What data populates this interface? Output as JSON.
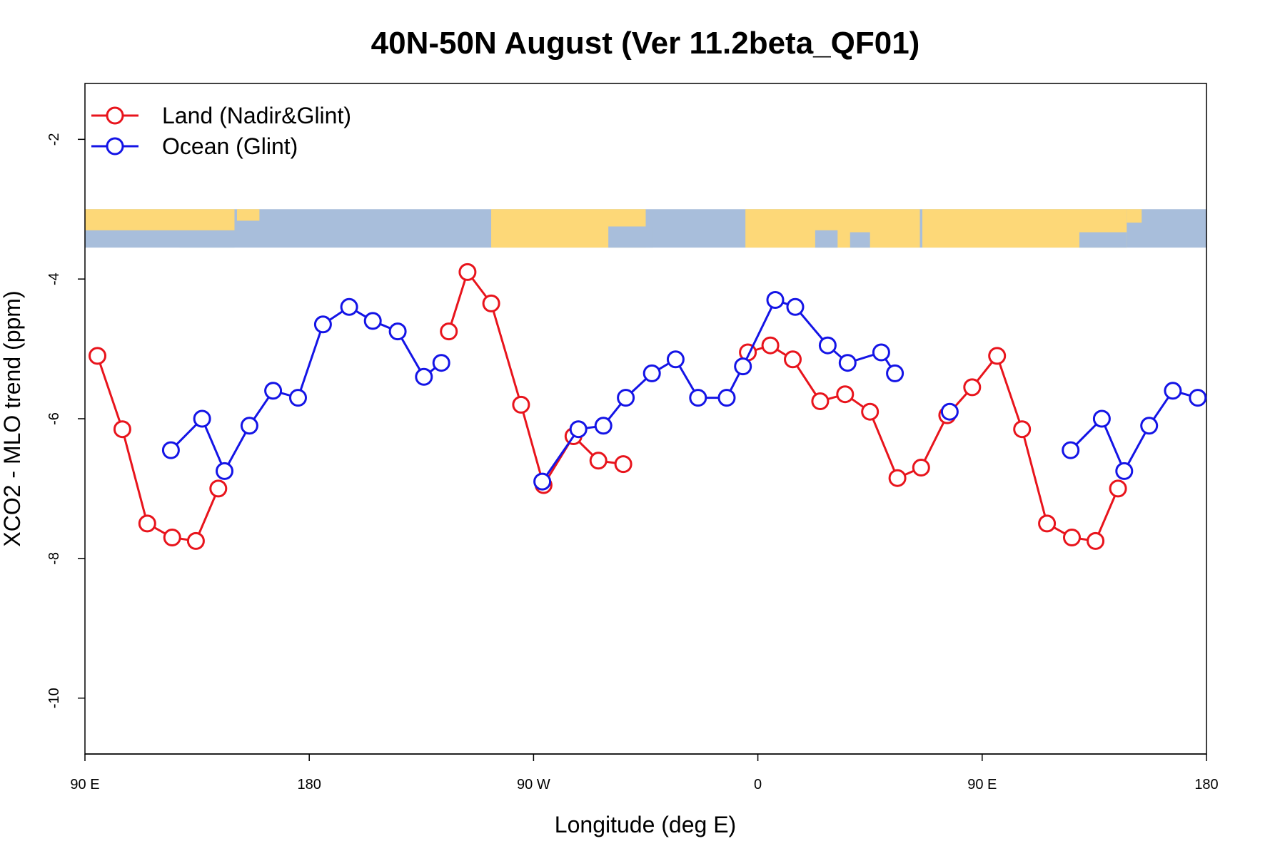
{
  "chart_data": {
    "type": "line",
    "title": "40N-50N August (Ver 11.2beta_QF01)",
    "xlabel": "Longitude (deg E)",
    "ylabel": "XCO2 - MLO trend (ppm)",
    "xlim": [
      90,
      540
    ],
    "ylim": [
      -10.8,
      -1.2
    ],
    "x_ticks": [
      {
        "value": 90,
        "label": "90 E"
      },
      {
        "value": 180,
        "label": "180"
      },
      {
        "value": 270,
        "label": "90 W"
      },
      {
        "value": 360,
        "label": "0"
      },
      {
        "value": 450,
        "label": "90 E"
      },
      {
        "value": 540,
        "label": "180"
      }
    ],
    "y_ticks": [
      {
        "value": -2,
        "label": "-2"
      },
      {
        "value": -4,
        "label": "-4"
      },
      {
        "value": -6,
        "label": "-6"
      },
      {
        "value": -8,
        "label": "-8"
      },
      {
        "value": -10,
        "label": "-10"
      }
    ],
    "grid": false,
    "legend": {
      "position": "top-left"
    },
    "map_strip": {
      "y_range": [
        -3.55,
        -3.0
      ],
      "land_color": "#FDD878",
      "ocean_color": "#A8BEDB"
    },
    "series": [
      {
        "name": "Land (Nadir&Glint)",
        "color": "#E8141C",
        "segments": [
          [
            [
              95,
              -5.1
            ],
            [
              105,
              -6.15
            ],
            [
              115,
              -7.5
            ],
            [
              125,
              -7.7
            ],
            [
              134.5,
              -7.75
            ],
            [
              143.5,
              -7.0
            ]
          ],
          [
            [
              236,
              -4.75
            ],
            [
              243.5,
              -3.9
            ],
            [
              253,
              -4.35
            ],
            [
              265,
              -5.8
            ],
            [
              274,
              -6.95
            ],
            [
              286,
              -6.25
            ],
            [
              296,
              -6.6
            ],
            [
              306,
              -6.65
            ]
          ],
          [
            [
              356,
              -5.05
            ],
            [
              365,
              -4.95
            ],
            [
              374,
              -5.15
            ],
            [
              385,
              -5.75
            ],
            [
              395,
              -5.65
            ],
            [
              405,
              -5.9
            ],
            [
              416,
              -6.85
            ],
            [
              425.5,
              -6.7
            ],
            [
              436,
              -5.95
            ],
            [
              446,
              -5.55
            ],
            [
              456,
              -5.1
            ],
            [
              466,
              -6.15
            ],
            [
              476,
              -7.5
            ],
            [
              486,
              -7.7
            ],
            [
              495.5,
              -7.75
            ],
            [
              504.5,
              -7.0
            ]
          ]
        ]
      },
      {
        "name": "Ocean (Glint)",
        "color": "#1414E6",
        "segments": [
          [
            [
              124.5,
              -6.45
            ],
            [
              137,
              -6.0
            ],
            [
              146,
              -6.75
            ],
            [
              156,
              -6.1
            ],
            [
              165.5,
              -5.6
            ],
            [
              175.5,
              -5.7
            ],
            [
              185.5,
              -4.65
            ],
            [
              196,
              -4.4
            ],
            [
              205.5,
              -4.6
            ],
            [
              215.5,
              -4.75
            ],
            [
              226,
              -5.4
            ],
            [
              233,
              -5.2
            ]
          ],
          [
            [
              273.5,
              -6.9
            ],
            [
              288,
              -6.15
            ],
            [
              298,
              -6.1
            ],
            [
              307,
              -5.7
            ],
            [
              317.5,
              -5.35
            ],
            [
              327,
              -5.15
            ],
            [
              336,
              -5.7
            ],
            [
              347.5,
              -5.7
            ],
            [
              354,
              -5.25
            ],
            [
              367,
              -4.3
            ],
            [
              375,
              -4.4
            ],
            [
              388,
              -4.95
            ],
            [
              396,
              -5.2
            ],
            [
              409.5,
              -5.05
            ],
            [
              415,
              -5.35
            ]
          ],
          [
            [
              437,
              -5.9
            ]
          ],
          [
            [
              485.5,
              -6.45
            ],
            [
              498,
              -6.0
            ],
            [
              507,
              -6.75
            ],
            [
              517,
              -6.1
            ],
            [
              526.5,
              -5.6
            ],
            [
              536.5,
              -5.7
            ]
          ]
        ]
      }
    ]
  }
}
